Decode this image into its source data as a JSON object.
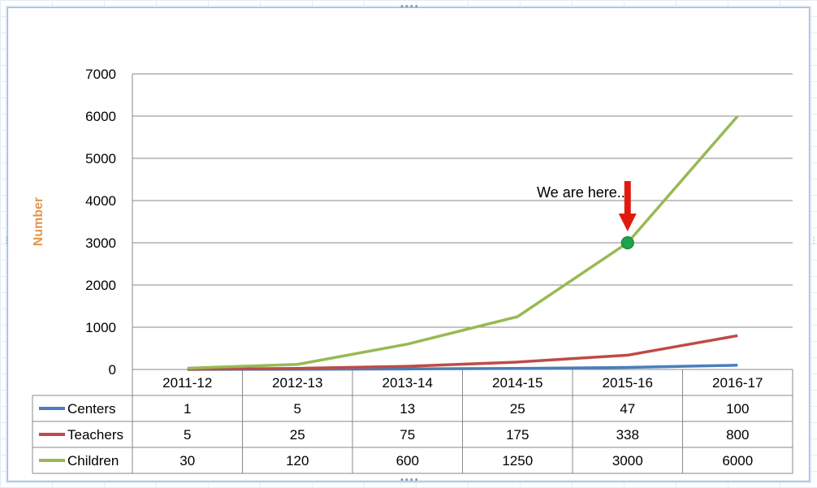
{
  "chart_data": {
    "type": "line",
    "ylabel": "Number",
    "ylim": [
      0,
      7000
    ],
    "yticks": [
      0,
      1000,
      2000,
      3000,
      4000,
      5000,
      6000,
      7000
    ],
    "categories": [
      "2011-12",
      "2012-13",
      "2013-14",
      "2014-15",
      "2015-16",
      "2016-17"
    ],
    "series": [
      {
        "name": "Centers",
        "color": "#4a7ebb",
        "values": [
          1,
          5,
          13,
          25,
          47,
          100
        ]
      },
      {
        "name": "Teachers",
        "color": "#be4b48",
        "values": [
          5,
          25,
          75,
          175,
          338,
          800
        ]
      },
      {
        "name": "Children",
        "color": "#98b954",
        "values": [
          30,
          120,
          600,
          1250,
          3000,
          6000
        ]
      }
    ],
    "annotation": {
      "text": "We are here..",
      "series": "Children",
      "category": "2015-16",
      "value": 3000,
      "arrow_color": "#e01b0e",
      "marker_color": "#1ea34a"
    },
    "grid": true,
    "legend_placement": "data-table"
  },
  "colors": {
    "ylabel": "#e6954a",
    "gridline": "#8a8a8a",
    "table_border": "#8a8a8a"
  }
}
